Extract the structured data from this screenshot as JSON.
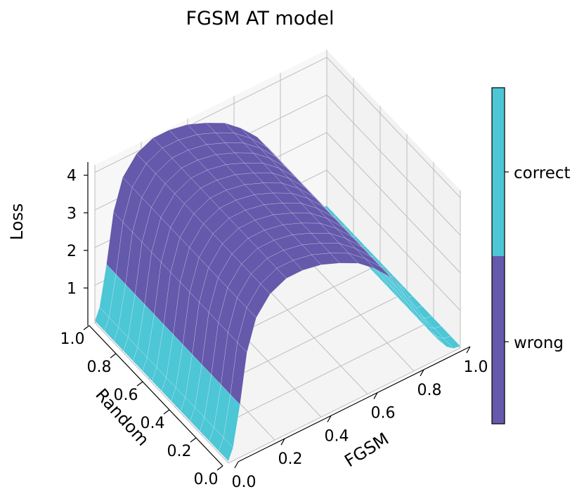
{
  "chart_data": {
    "type": "surface",
    "title": "FGSM AT model",
    "xlabel": "FGSM",
    "ylabel": "Random",
    "zlabel": "Loss",
    "x_ticks": [
      "0.0",
      "0.2",
      "0.4",
      "0.6",
      "0.8",
      "1.0"
    ],
    "y_ticks": [
      "0.0",
      "0.2",
      "0.4",
      "0.6",
      "0.8",
      "1.0"
    ],
    "z_ticks": [
      "1",
      "2",
      "3",
      "4"
    ],
    "xlim": [
      0,
      1
    ],
    "ylim": [
      0,
      1
    ],
    "zlim": [
      0,
      4.2
    ],
    "grid": true,
    "surface": {
      "x": [
        0.0,
        0.02,
        0.05,
        0.08,
        0.12,
        0.18,
        0.25,
        0.32,
        0.4,
        0.48,
        0.56,
        0.63,
        0.7,
        0.76,
        0.81,
        0.86,
        0.9,
        0.94,
        0.97,
        1.0
      ],
      "z": [
        0.05,
        0.35,
        1.4,
        2.7,
        3.5,
        3.95,
        4.15,
        4.15,
        4.05,
        3.85,
        3.6,
        3.25,
        2.8,
        2.25,
        1.65,
        1.05,
        0.55,
        0.22,
        0.08,
        0.05
      ],
      "note_y_range": [
        0,
        1
      ],
      "threshold": 2.0
    },
    "colorbar": {
      "labels": [
        "correct",
        "wrong"
      ],
      "colors": {
        "correct": "#4dc6d6",
        "wrong": "#6459ab"
      }
    }
  }
}
